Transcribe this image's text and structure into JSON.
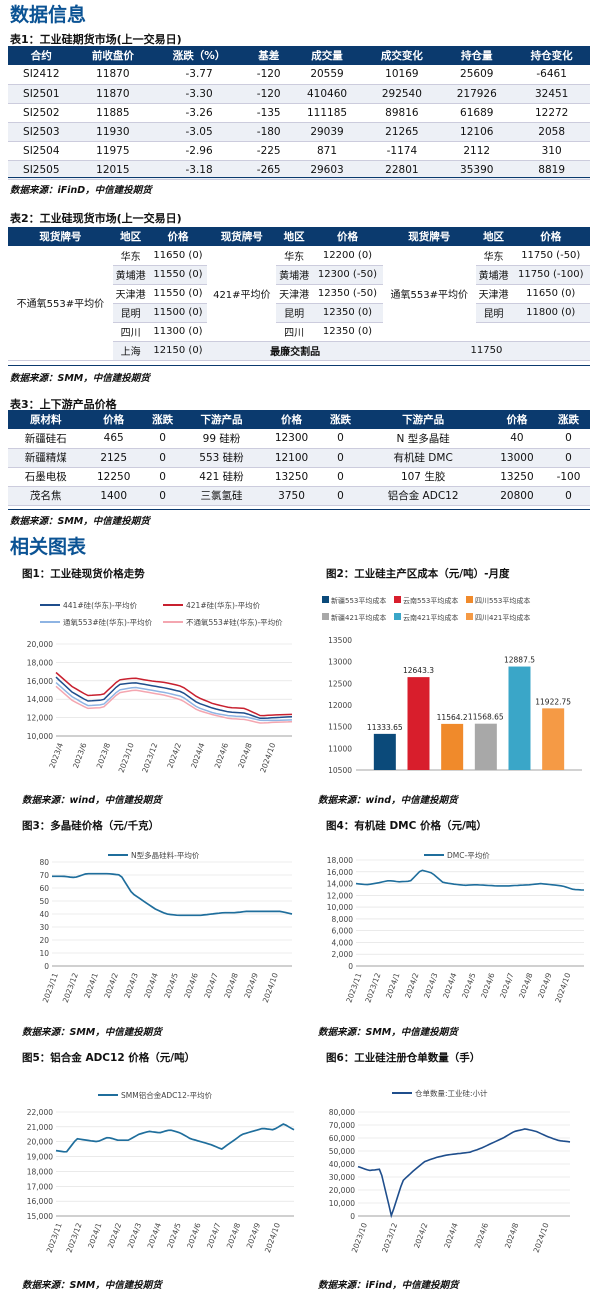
{
  "section1": "数据信息",
  "section2": "相关图表",
  "table1": {
    "caption": "表1：工业硅期货市场(上一交易日)",
    "headers": [
      "合约",
      "前收盘价",
      "涨跌（%）",
      "基差",
      "成交量",
      "成交变化",
      "持仓量",
      "持仓变化"
    ],
    "rows": [
      [
        "SI2412",
        "11870",
        "-3.77",
        "-120",
        "20559",
        "10169",
        "25609",
        "-6461"
      ],
      [
        "SI2501",
        "11870",
        "-3.30",
        "-120",
        "410460",
        "292540",
        "217926",
        "32451"
      ],
      [
        "SI2502",
        "11885",
        "-3.26",
        "-135",
        "111185",
        "89816",
        "61689",
        "12272"
      ],
      [
        "SI2503",
        "11930",
        "-3.05",
        "-180",
        "29039",
        "21265",
        "12106",
        "2058"
      ],
      [
        "SI2504",
        "11975",
        "-2.96",
        "-225",
        "871",
        "-1174",
        "2112",
        "310"
      ],
      [
        "SI2505",
        "12015",
        "-3.18",
        "-265",
        "29603",
        "22801",
        "35390",
        "8819"
      ]
    ],
    "source": "数据来源：iFinD，中信建投期货"
  },
  "table2": {
    "caption": "表2：工业硅现货市场(上一交易日)",
    "headers": [
      "现货牌号",
      "地区",
      "价格",
      "现货牌号",
      "地区",
      "价格",
      "现货牌号",
      "地区",
      "价格"
    ],
    "g1": "不通氧553#平均价",
    "g2": "421#平均价",
    "g3": "通氧553#平均价",
    "r": [
      [
        "华东",
        "11650 (0)",
        "华东",
        "12200 (0)",
        "华东",
        "11750 (-50)"
      ],
      [
        "黄埔港",
        "11550 (0)",
        "黄埔港",
        "12300 (-50)",
        "黄埔港",
        "11750 (-100)"
      ],
      [
        "天津港",
        "11550 (0)",
        "天津港",
        "12350 (-50)",
        "天津港",
        "11650 (0)"
      ],
      [
        "昆明",
        "11500 (0)",
        "昆明",
        "12350 (0)",
        "昆明",
        "11800 (0)"
      ],
      [
        "四川",
        "11300 (0)",
        "四川",
        "12350 (0)",
        "",
        ""
      ]
    ],
    "last_region": "上海",
    "last_price": "12150 (0)",
    "min_label": "最廉交割品",
    "min_value": "11750",
    "source": "数据来源：SMM，中信建投期货"
  },
  "table3": {
    "caption": "表3：上下游产品价格",
    "headers": [
      "原材料",
      "价格",
      "涨跌",
      "下游产品",
      "价格",
      "涨跌",
      "下游产品",
      "价格",
      "涨跌"
    ],
    "rows": [
      [
        "新疆硅石",
        "465",
        "0",
        "99 硅粉",
        "12300",
        "0",
        "N 型多晶硅",
        "40",
        "0"
      ],
      [
        "新疆精煤",
        "2125",
        "0",
        "553 硅粉",
        "12100",
        "0",
        "有机硅 DMC",
        "13000",
        "0"
      ],
      [
        "石墨电极",
        "12250",
        "0",
        "421 硅粉",
        "13250",
        "0",
        "107 生胶",
        "13250",
        "-100"
      ],
      [
        "茂名焦",
        "1400",
        "0",
        "三氯氢硅",
        "3750",
        "0",
        "铝合金 ADC12",
        "20800",
        "0"
      ]
    ],
    "source": "数据来源：SMM，中信建投期货"
  },
  "fig1": {
    "title": "图1：工业硅现货价格走势",
    "source": "数据来源：wind，中信建投期货",
    "chart_data": {
      "type": "line",
      "series": [
        {
          "name": "441#硅(华东)-平均价",
          "color": "#1f4e8c"
        },
        {
          "name": "421#硅(华东)-平均价",
          "color": "#c8202f"
        },
        {
          "name": "通氧553#硅(华东)-平均价",
          "color": "#8eb4e3"
        },
        {
          "name": "不通氧553#硅(华东)-平均价",
          "color": "#f4a6b0"
        }
      ],
      "y_ticks": [
        "20,000",
        "18,000",
        "16,000",
        "14,000",
        "12,000",
        "10,000"
      ],
      "ylim": [
        10000,
        20000
      ],
      "x_ticks": [
        "2023/4",
        "2023/6",
        "2023/8",
        "2023/10",
        "2023/12",
        "2024/2",
        "2024/4",
        "2024/6",
        "2024/8",
        "2024/10"
      ]
    }
  },
  "fig2": {
    "title": "图2：工业硅主产区成本（元/吨）-月度",
    "source": "数据来源：wind，中信建投期货",
    "chart_data": {
      "type": "bar",
      "categories": [
        "新疆553平均成本",
        "云南553平均成本",
        "四川553平均成本",
        "新疆421平均成本",
        "云南421平均成本",
        "四川421平均成本"
      ],
      "values": [
        11333.65,
        12643.3,
        11564.2,
        11568.65,
        12887.5,
        11922.75
      ],
      "labels": [
        "11333.65",
        "12643.3",
        "11564.2",
        "11568.65",
        "12887.5",
        "11922.75"
      ],
      "colors": [
        "#0b4a7a",
        "#d81e2c",
        "#f08a2b",
        "#a8a8a8",
        "#3aa6c8",
        "#f59a45"
      ],
      "y_ticks": [
        "13500",
        "13000",
        "12500",
        "12000",
        "11500",
        "11000",
        "10500"
      ],
      "ylim": [
        10500,
        13500
      ]
    }
  },
  "fig3": {
    "title": "图3：多晶硅价格（元/千克）",
    "source": "数据来源：SMM，中信建投期货",
    "chart_data": {
      "type": "line",
      "series": [
        {
          "name": "N型多晶硅料-平均价",
          "color": "#1f6e9c"
        }
      ],
      "y_ticks": [
        "80",
        "70",
        "60",
        "50",
        "40",
        "30",
        "20",
        "10",
        "0"
      ],
      "ylim": [
        0,
        80
      ],
      "x_ticks": [
        "2023/11",
        "2023/12",
        "2024/1",
        "2024/2",
        "2024/3",
        "2024/4",
        "2024/5",
        "2024/6",
        "2024/7",
        "2024/8",
        "2024/9",
        "2024/10"
      ]
    }
  },
  "fig4": {
    "title": "图4：有机硅 DMC 价格（元/吨）",
    "source": "数据来源：SMM，中信建投期货",
    "chart_data": {
      "type": "line",
      "series": [
        {
          "name": "DMC-平均价",
          "color": "#1f6e9c"
        }
      ],
      "y_ticks": [
        "18,000",
        "16,000",
        "14,000",
        "12,000",
        "10,000",
        "8,000",
        "6,000",
        "4,000",
        "2,000",
        "0"
      ],
      "ylim": [
        0,
        18000
      ],
      "x_ticks": [
        "2023/11",
        "2023/12",
        "2024/1",
        "2024/2",
        "2024/3",
        "2024/4",
        "2024/5",
        "2024/6",
        "2024/7",
        "2024/8",
        "2024/9",
        "2024/10"
      ]
    }
  },
  "fig5": {
    "title": "图5：铝合金 ADC12 价格（元/吨）",
    "source": "数据来源：SMM，中信建投期货",
    "chart_data": {
      "type": "line",
      "series": [
        {
          "name": "SMM铝合金ADC12-平均价",
          "color": "#1f6e9c"
        }
      ],
      "y_ticks": [
        "22,000",
        "21,000",
        "20,000",
        "19,000",
        "18,000",
        "17,000",
        "16,000",
        "15,000"
      ],
      "ylim": [
        15000,
        22000
      ],
      "x_ticks": [
        "2023/11",
        "2023/12",
        "2024/1",
        "2024/2",
        "2024/3",
        "2024/4",
        "2024/5",
        "2024/6",
        "2024/7",
        "2024/8",
        "2024/9",
        "2024/10"
      ]
    }
  },
  "fig6": {
    "title": "图6：工业硅注册仓单数量（手）",
    "source": "数据来源：iFind，中信建投期货",
    "chart_data": {
      "type": "line",
      "series": [
        {
          "name": "仓单数量:工业硅:小计",
          "color": "#1f4e8c"
        }
      ],
      "y_ticks": [
        "80,000",
        "70,000",
        "60,000",
        "50,000",
        "40,000",
        "30,000",
        "20,000",
        "10,000",
        "0"
      ],
      "ylim": [
        0,
        80000
      ],
      "x_ticks": [
        "2023/10",
        "2023/12",
        "2024/2",
        "2024/4",
        "2024/6",
        "2024/8",
        "2024/10"
      ]
    }
  }
}
